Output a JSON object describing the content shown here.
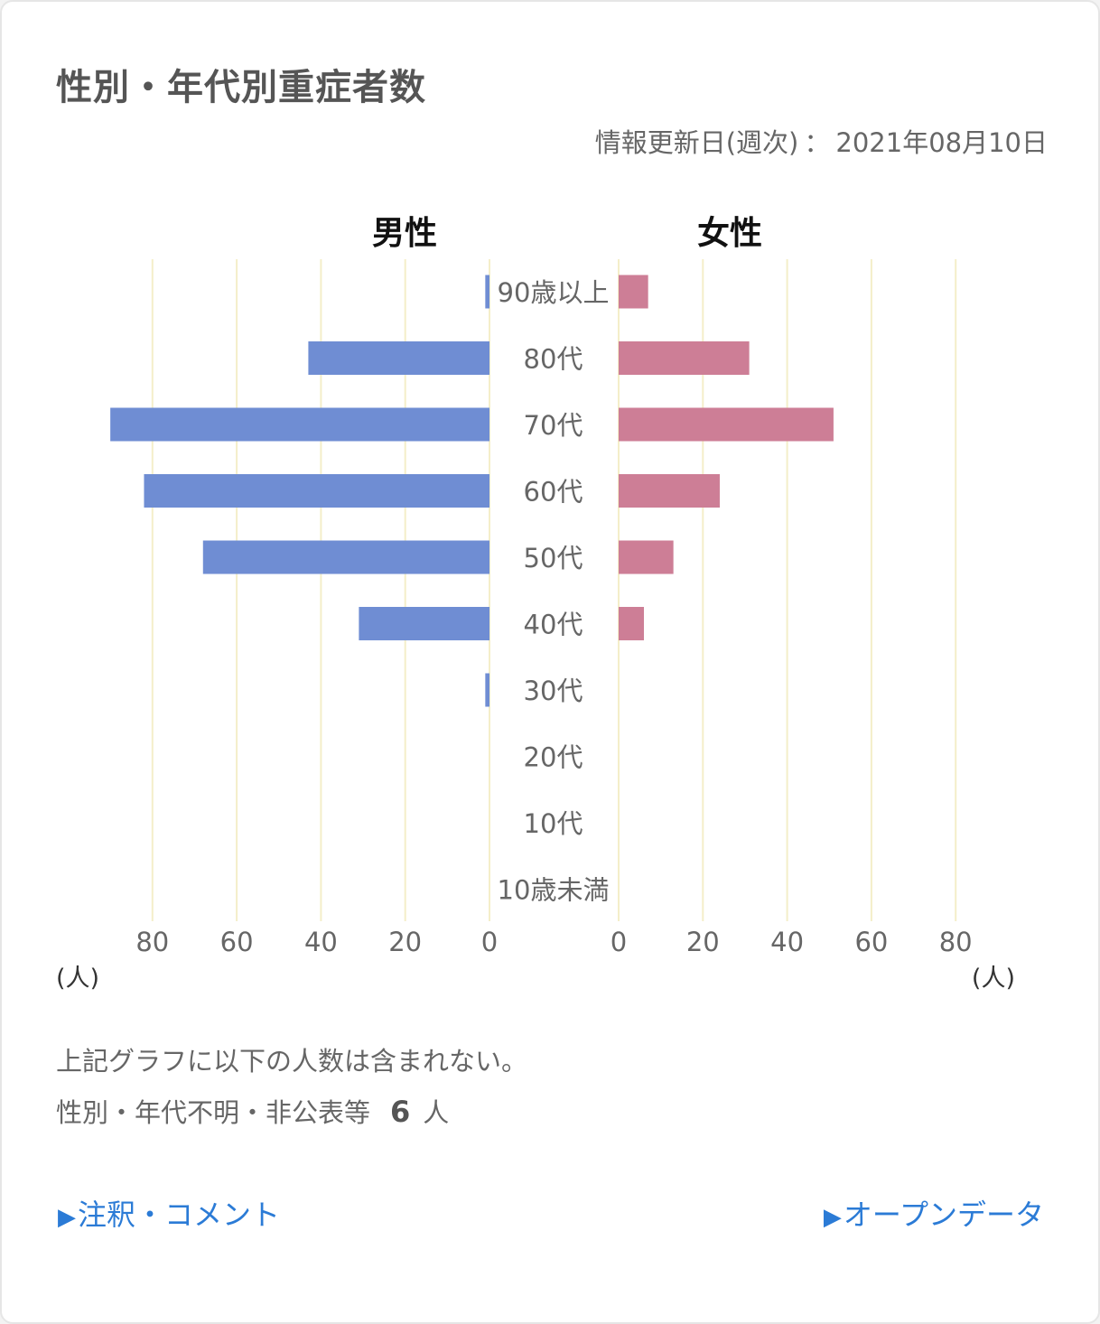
{
  "title": "性別・年代別重症者数",
  "update_label": "情報更新日(週次)",
  "update_separator": "：",
  "update_date": "2021年08月10日",
  "colors": {
    "male": "#6f8dd3",
    "female": "#cd7e96",
    "grid": "#f4eec9",
    "text": "#666666",
    "link": "#2b7bd6"
  },
  "chart_data": {
    "type": "bar",
    "orientation": "horizontal-pyramid",
    "categories": [
      "90歳以上",
      "80代",
      "70代",
      "60代",
      "50代",
      "40代",
      "30代",
      "20代",
      "10代",
      "10歳未満"
    ],
    "series": [
      {
        "name": "男性",
        "values": [
          1,
          43,
          90,
          82,
          68,
          31,
          1,
          0,
          0,
          0
        ]
      },
      {
        "name": "女性",
        "values": [
          7,
          31,
          51,
          24,
          13,
          6,
          0,
          0,
          0,
          0
        ]
      }
    ],
    "ticks": [
      0,
      20,
      40,
      60,
      80
    ],
    "xlim": [
      0,
      100
    ],
    "unit": "(人)",
    "grid": true
  },
  "note_line1": "上記グラフに以下の人数は含まれない。",
  "note_line2": "性別・年代不明・非公表等",
  "excluded_count": "6",
  "excluded_unit": "人",
  "link_notes": "注釈・コメント",
  "link_opendata": "オープンデータ",
  "link_arrow": "▶"
}
